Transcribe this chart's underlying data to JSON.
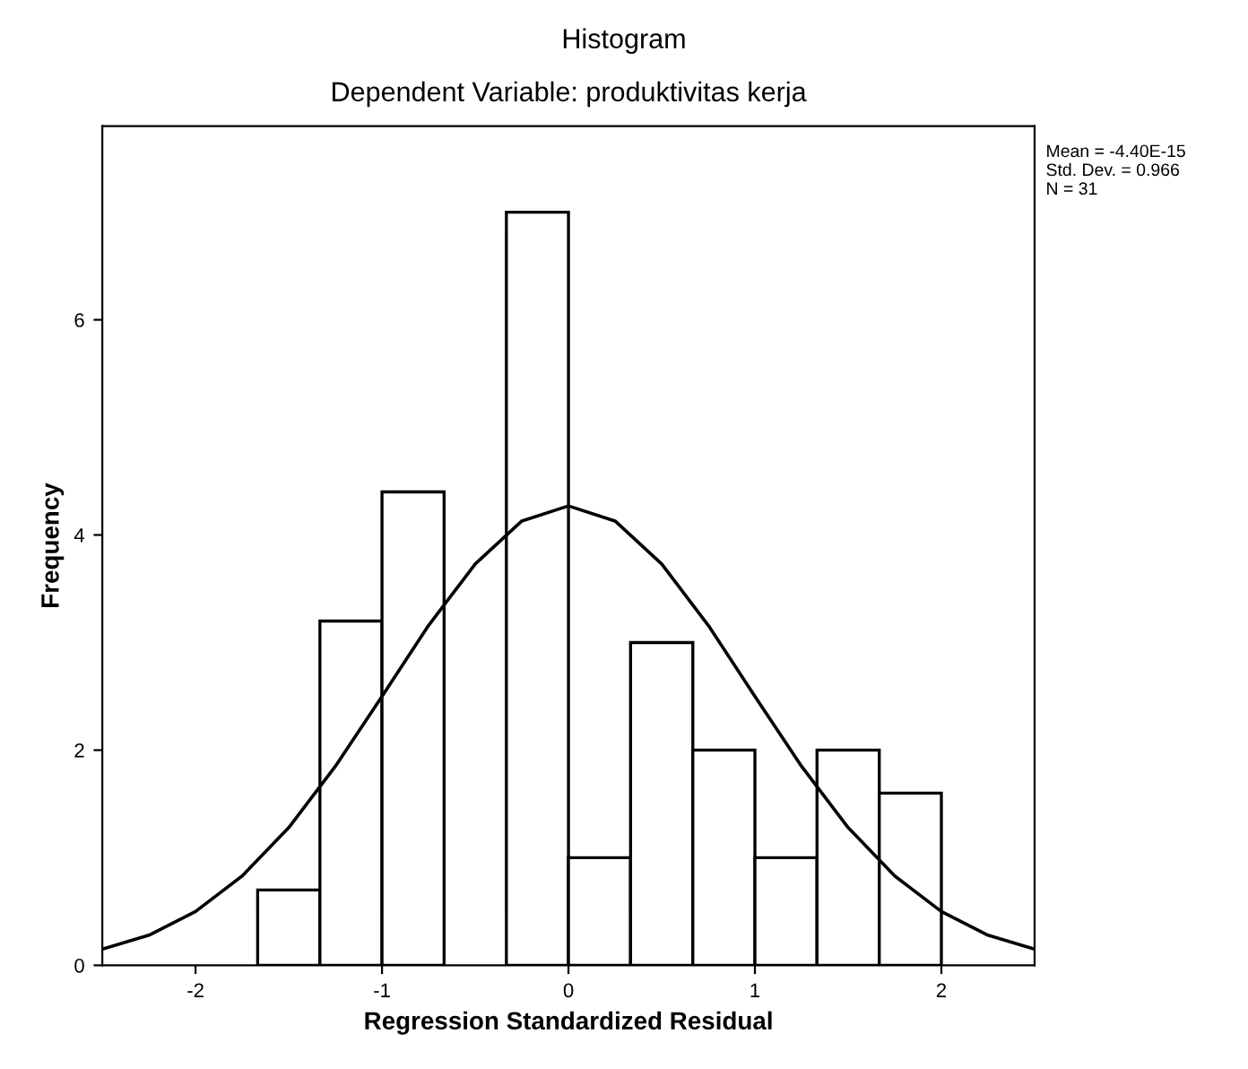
{
  "chart_data": {
    "type": "histogram",
    "title": "Histogram",
    "subtitle": "Dependent Variable: produktivitas kerja",
    "xlabel": "Regression Standardized Residual",
    "ylabel": "Frequency",
    "bins": [
      -1.667,
      -1.333,
      -1.0,
      -0.667,
      -0.333,
      0.0,
      0.333,
      0.667,
      1.0,
      1.333,
      1.667,
      2.0
    ],
    "values": [
      0.7,
      3.2,
      4.4,
      0,
      7,
      1,
      3,
      2,
      1,
      2,
      1.6
    ],
    "color": "#ffffff",
    "series": [
      {
        "type": "line",
        "color": "#000000",
        "x": [
          -2.5,
          -2.25,
          -2.0,
          -1.75,
          -1.5,
          -1.25,
          -1.0,
          -0.75,
          -0.5,
          -0.25,
          0.0,
          0.25,
          0.5,
          0.75,
          1.0,
          1.25,
          1.5,
          1.75,
          2.0,
          2.25,
          2.5
        ],
        "values": [
          0.15,
          0.28,
          0.5,
          0.83,
          1.28,
          1.85,
          2.5,
          3.16,
          3.73,
          4.13,
          4.27,
          4.13,
          3.73,
          3.16,
          2.5,
          1.85,
          1.28,
          0.83,
          0.5,
          0.28,
          0.15
        ]
      }
    ],
    "xlim": [
      -2.5,
      2.5
    ],
    "ylim": [
      0,
      7.8
    ],
    "xticks": [
      -2,
      -1,
      0,
      1,
      2
    ],
    "yticks": [
      0,
      2,
      4,
      6
    ],
    "grid": false,
    "annotations": [
      "Mean = -4.40E-15\nStd. Dev. = 0.966\nN = 31"
    ]
  }
}
